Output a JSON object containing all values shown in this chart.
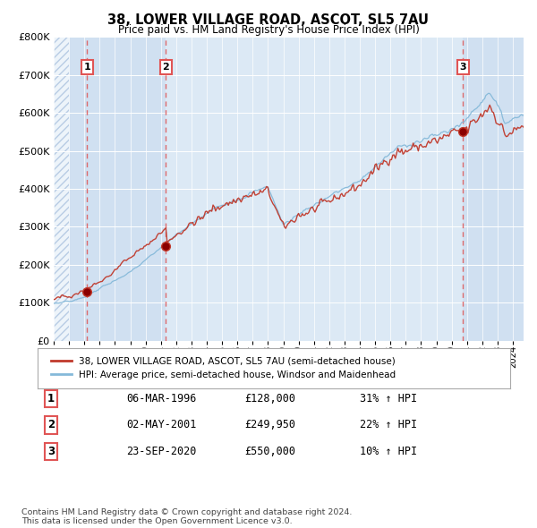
{
  "title": "38, LOWER VILLAGE ROAD, ASCOT, SL5 7AU",
  "subtitle": "Price paid vs. HM Land Registry's House Price Index (HPI)",
  "legend_red": "38, LOWER VILLAGE ROAD, ASCOT, SL5 7AU (semi-detached house)",
  "legend_blue": "HPI: Average price, semi-detached house, Windsor and Maidenhead",
  "footnote": "Contains HM Land Registry data © Crown copyright and database right 2024.\nThis data is licensed under the Open Government Licence v3.0.",
  "transactions": [
    {
      "num": 1,
      "date": "06-MAR-1996",
      "date_num": 1996.18,
      "price": 128000,
      "pct": "31% ↑ HPI"
    },
    {
      "num": 2,
      "date": "02-MAY-2001",
      "date_num": 2001.33,
      "price": 249950,
      "pct": "22% ↑ HPI"
    },
    {
      "num": 3,
      "date": "23-SEP-2020",
      "date_num": 2020.73,
      "price": 550000,
      "pct": "10% ↑ HPI"
    }
  ],
  "ylim": [
    0,
    800000
  ],
  "xlim_start": 1994.0,
  "xlim_end": 2024.7,
  "plot_bg": "#dce9f5",
  "hatch_region_end": 1995.0,
  "hatch_color": "#b8cce4",
  "red_color": "#c0392b",
  "blue_color": "#85b9d9",
  "grid_color": "#ffffff",
  "vline_color": "#e05555",
  "shade1_color": "#ccddf0",
  "shade2_color": "#dce9f5"
}
